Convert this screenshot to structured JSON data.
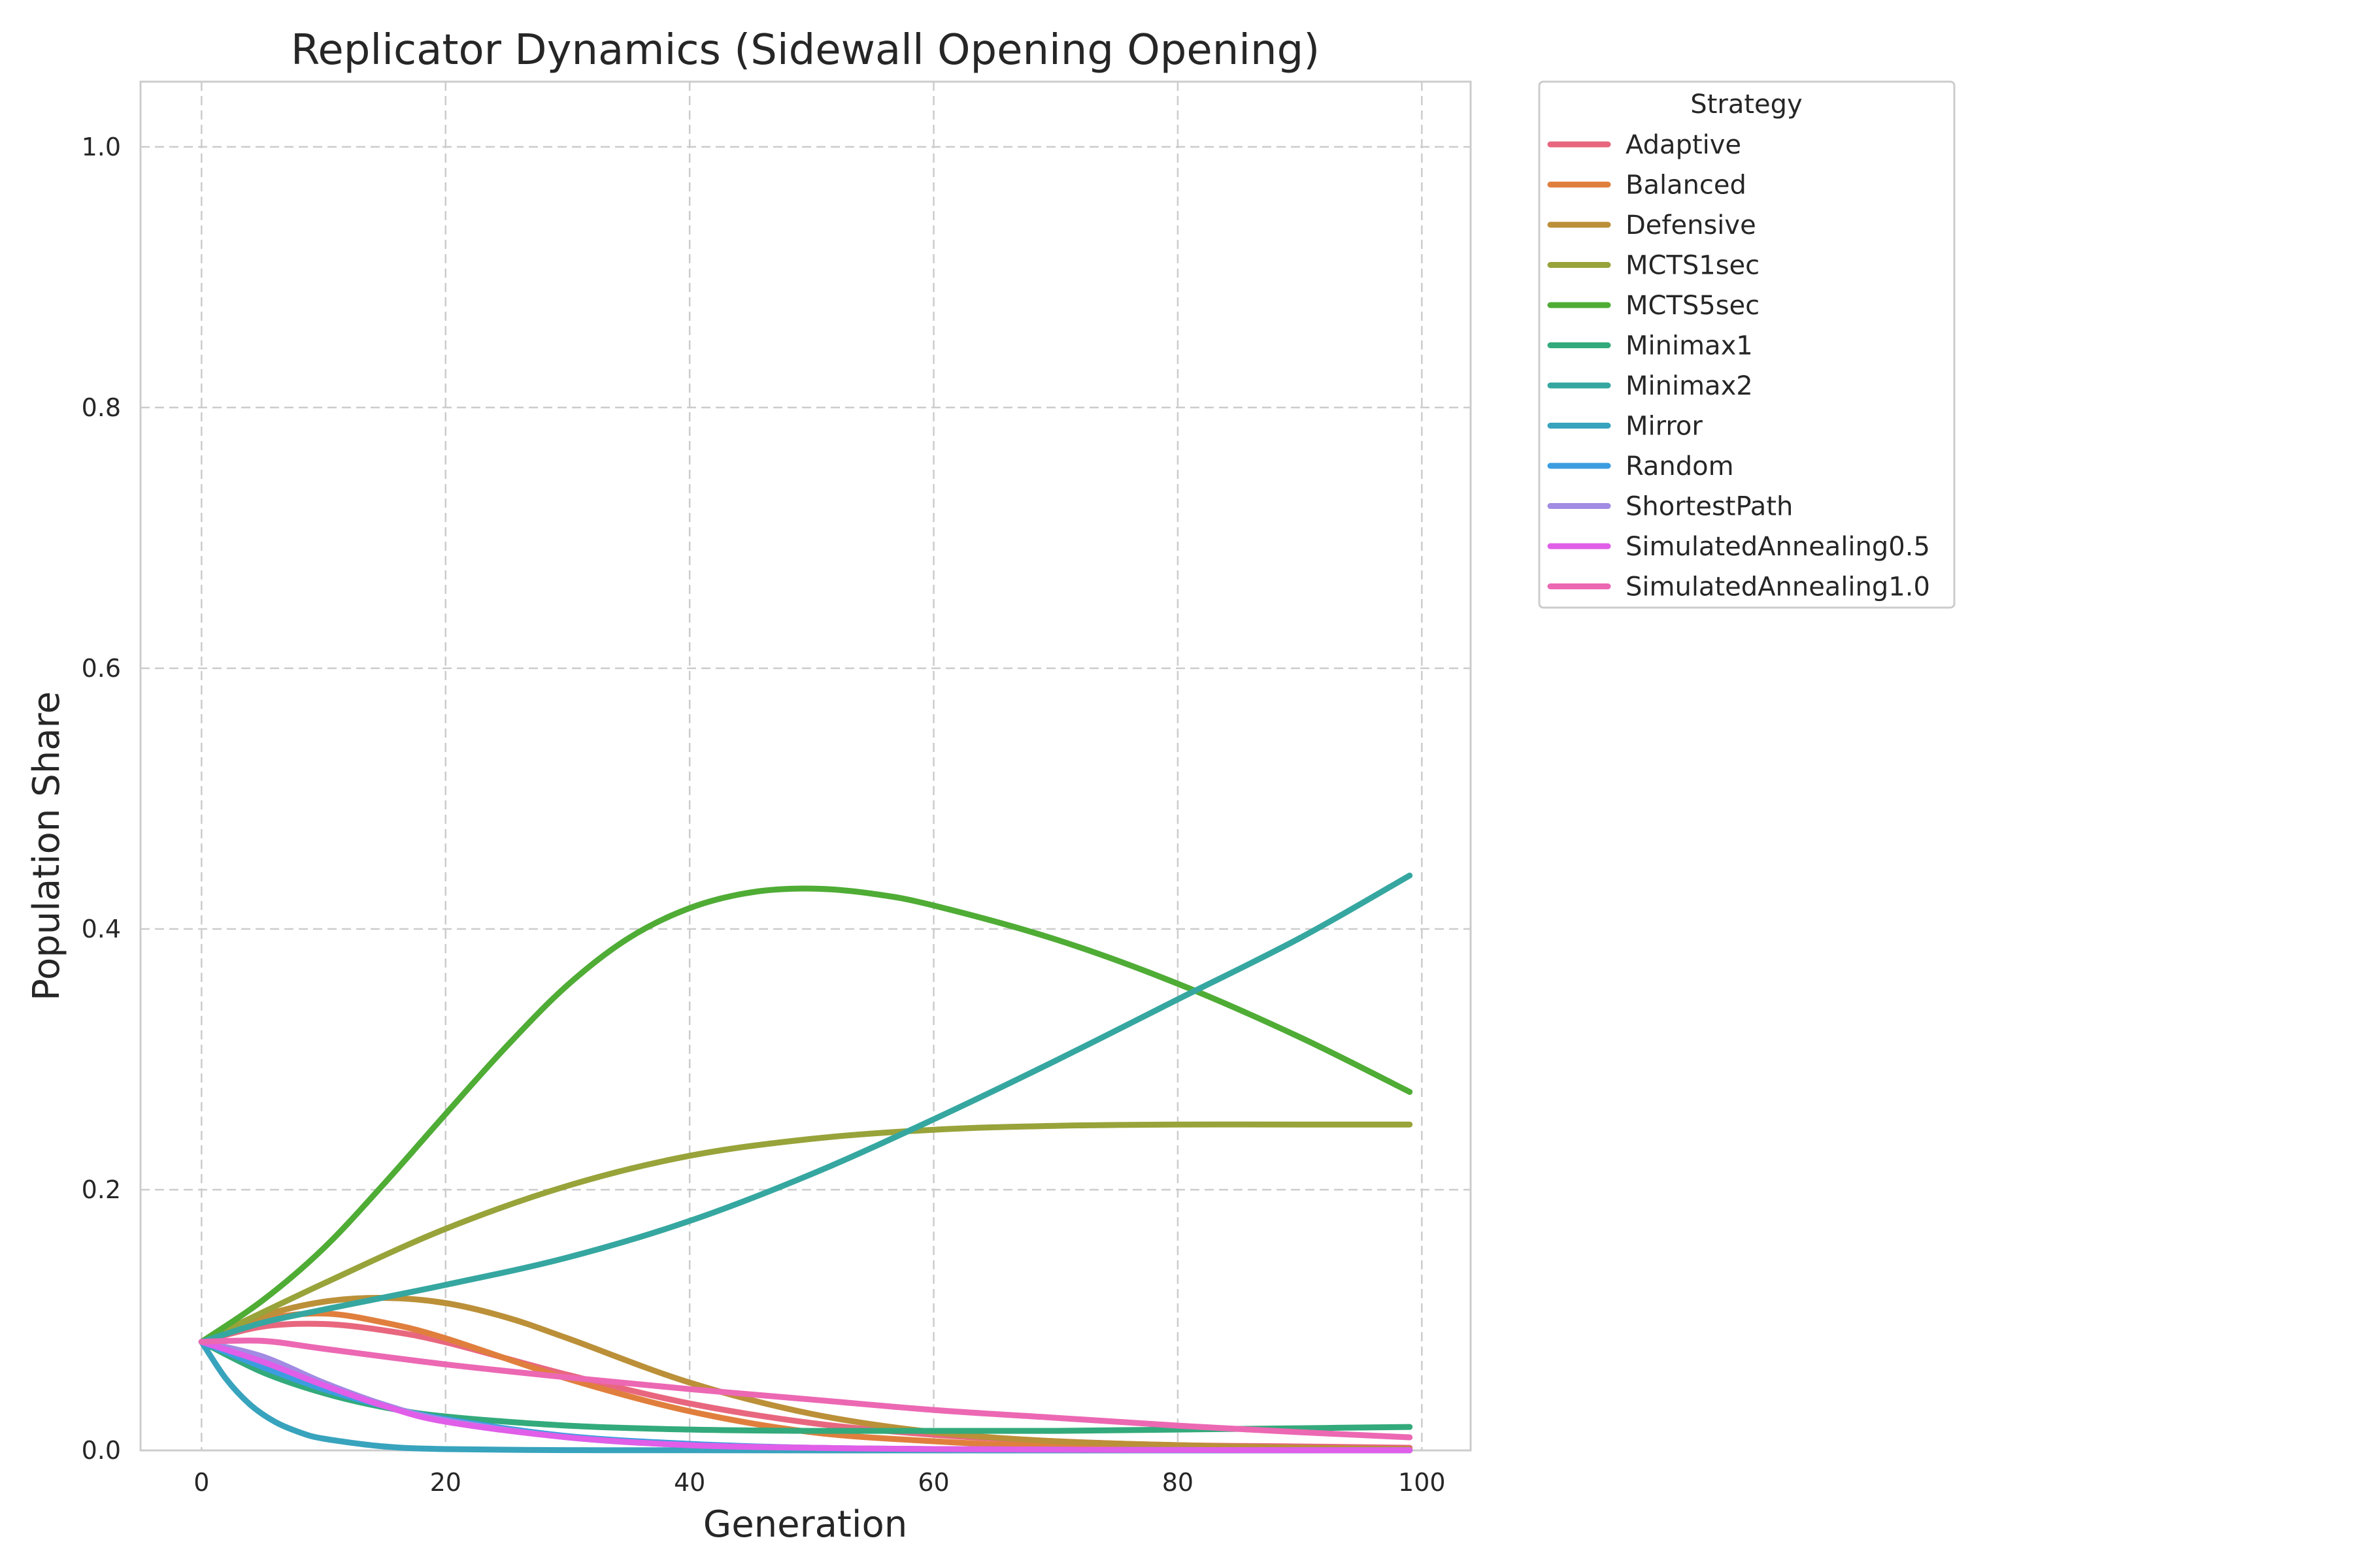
{
  "chart_data": {
    "type": "line",
    "title": "Replicator Dynamics (Sidewall Opening Opening)",
    "xlabel": "Generation",
    "ylabel": "Population Share",
    "xlim": [
      -5,
      104
    ],
    "ylim": [
      0,
      1.05
    ],
    "xticks": [
      0,
      20,
      40,
      60,
      80,
      100
    ],
    "yticks": [
      0.0,
      0.2,
      0.4,
      0.6,
      0.8,
      1.0
    ],
    "ytick_labels": [
      "0.0",
      "0.2",
      "0.4",
      "0.6",
      "0.8",
      "1.0"
    ],
    "grid": true,
    "legend_title": "Strategy",
    "legend_position": "outside-top-right",
    "series": [
      {
        "name": "Adaptive",
        "color": "#e8677f",
        "x": [
          0,
          5,
          10,
          15,
          20,
          30,
          40,
          50,
          60,
          70,
          80,
          90,
          99
        ],
        "y": [
          0.0833,
          0.095,
          0.097,
          0.092,
          0.083,
          0.058,
          0.036,
          0.021,
          0.012,
          0.007,
          0.004,
          0.003,
          0.002
        ]
      },
      {
        "name": "Balanced",
        "color": "#e07f3d",
        "x": [
          0,
          5,
          10,
          15,
          20,
          30,
          40,
          50,
          60,
          70,
          80,
          90,
          99
        ],
        "y": [
          0.0833,
          0.1,
          0.105,
          0.098,
          0.086,
          0.055,
          0.03,
          0.014,
          0.007,
          0.003,
          0.0015,
          0.001,
          0.0005
        ]
      },
      {
        "name": "Defensive",
        "color": "#bb9038",
        "x": [
          0,
          5,
          10,
          15,
          20,
          25,
          30,
          40,
          50,
          60,
          70,
          80,
          90,
          99
        ],
        "y": [
          0.0833,
          0.103,
          0.114,
          0.117,
          0.113,
          0.102,
          0.086,
          0.052,
          0.028,
          0.014,
          0.007,
          0.004,
          0.002,
          0.001
        ]
      },
      {
        "name": "MCTS1sec",
        "color": "#98a33a",
        "x": [
          0,
          10,
          20,
          30,
          40,
          50,
          60,
          70,
          80,
          90,
          99
        ],
        "y": [
          0.0833,
          0.128,
          0.17,
          0.203,
          0.226,
          0.239,
          0.246,
          0.249,
          0.25,
          0.25,
          0.25
        ]
      },
      {
        "name": "MCTS5sec",
        "color": "#4fac35",
        "x": [
          0,
          5,
          10,
          15,
          20,
          25,
          30,
          35,
          40,
          45,
          50,
          55,
          60,
          70,
          80,
          90,
          99
        ],
        "y": [
          0.0833,
          0.115,
          0.155,
          0.205,
          0.258,
          0.31,
          0.357,
          0.393,
          0.416,
          0.428,
          0.431,
          0.427,
          0.418,
          0.392,
          0.358,
          0.317,
          0.275
        ]
      },
      {
        "name": "Minimax1",
        "color": "#33aa7b",
        "x": [
          0,
          5,
          10,
          15,
          20,
          30,
          40,
          50,
          60,
          70,
          80,
          90,
          99
        ],
        "y": [
          0.0833,
          0.06,
          0.044,
          0.033,
          0.026,
          0.019,
          0.016,
          0.015,
          0.015,
          0.015,
          0.016,
          0.017,
          0.018
        ]
      },
      {
        "name": "Minimax2",
        "color": "#35a7a0",
        "x": [
          0,
          5,
          10,
          20,
          30,
          40,
          50,
          60,
          70,
          80,
          90,
          99
        ],
        "y": [
          0.0833,
          0.098,
          0.108,
          0.127,
          0.148,
          0.176,
          0.212,
          0.254,
          0.299,
          0.346,
          0.393,
          0.441
        ]
      },
      {
        "name": "Mirror",
        "color": "#38a3bd",
        "x": [
          0,
          2,
          4,
          6,
          8,
          10,
          15,
          20,
          30,
          40,
          60,
          80,
          99
        ],
        "y": [
          0.0833,
          0.055,
          0.035,
          0.022,
          0.014,
          0.009,
          0.003,
          0.001,
          0.0002,
          0.0001,
          0.0,
          0.0,
          0.0
        ]
      },
      {
        "name": "Random",
        "color": "#3b9de0",
        "x": [
          0,
          5,
          10,
          15,
          20,
          30,
          40,
          50,
          60,
          80,
          99
        ],
        "y": [
          0.0833,
          0.064,
          0.047,
          0.034,
          0.024,
          0.011,
          0.005,
          0.002,
          0.001,
          0.0003,
          0.0001
        ]
      },
      {
        "name": "ShortestPath",
        "color": "#a28be3",
        "x": [
          0,
          5,
          10,
          15,
          20,
          30,
          40,
          50,
          60,
          80,
          99
        ],
        "y": [
          0.0833,
          0.072,
          0.052,
          0.035,
          0.023,
          0.01,
          0.004,
          0.002,
          0.001,
          0.0003,
          0.0001
        ]
      },
      {
        "name": "SimulatedAnnealing0.5",
        "color": "#e05ee8",
        "x": [
          0,
          5,
          10,
          15,
          20,
          30,
          40,
          50,
          60,
          80,
          99
        ],
        "y": [
          0.0833,
          0.068,
          0.05,
          0.034,
          0.022,
          0.01,
          0.004,
          0.002,
          0.001,
          0.0003,
          0.0001
        ]
      },
      {
        "name": "SimulatedAnnealing1.0",
        "color": "#ec68b3",
        "x": [
          0,
          5,
          10,
          20,
          30,
          40,
          50,
          60,
          70,
          80,
          90,
          99
        ],
        "y": [
          0.0833,
          0.084,
          0.078,
          0.066,
          0.056,
          0.047,
          0.039,
          0.031,
          0.025,
          0.019,
          0.014,
          0.01
        ]
      }
    ]
  }
}
